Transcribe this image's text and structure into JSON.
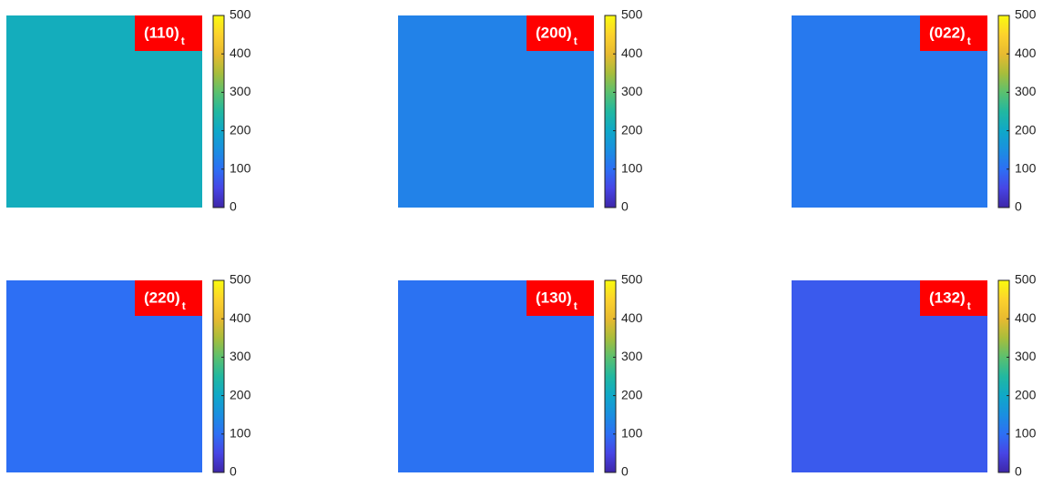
{
  "chart_data": [
    {
      "type": "heatmap",
      "label": "(110)",
      "label_subscript": "t",
      "value": 215,
      "clim": [
        0,
        500
      ],
      "cticks": [
        0,
        100,
        200,
        300,
        400,
        500
      ]
    },
    {
      "type": "heatmap",
      "label": "(200)",
      "label_subscript": "t",
      "value": 130,
      "clim": [
        0,
        500
      ],
      "cticks": [
        0,
        100,
        200,
        300,
        400,
        500
      ]
    },
    {
      "type": "heatmap",
      "label": "(022)",
      "label_subscript": "t",
      "value": 115,
      "clim": [
        0,
        500
      ],
      "cticks": [
        0,
        100,
        200,
        300,
        400,
        500
      ]
    },
    {
      "type": "heatmap",
      "label": "(220)",
      "label_subscript": "t",
      "value": 100,
      "clim": [
        0,
        500
      ],
      "cticks": [
        0,
        100,
        200,
        300,
        400,
        500
      ]
    },
    {
      "type": "heatmap",
      "label": "(130)",
      "label_subscript": "t",
      "value": 105,
      "clim": [
        0,
        500
      ],
      "cticks": [
        0,
        100,
        200,
        300,
        400,
        500
      ]
    },
    {
      "type": "heatmap",
      "label": "(132)",
      "label_subscript": "t",
      "value": 75,
      "clim": [
        0,
        500
      ],
      "cticks": [
        0,
        100,
        200,
        300,
        400,
        500
      ]
    }
  ]
}
